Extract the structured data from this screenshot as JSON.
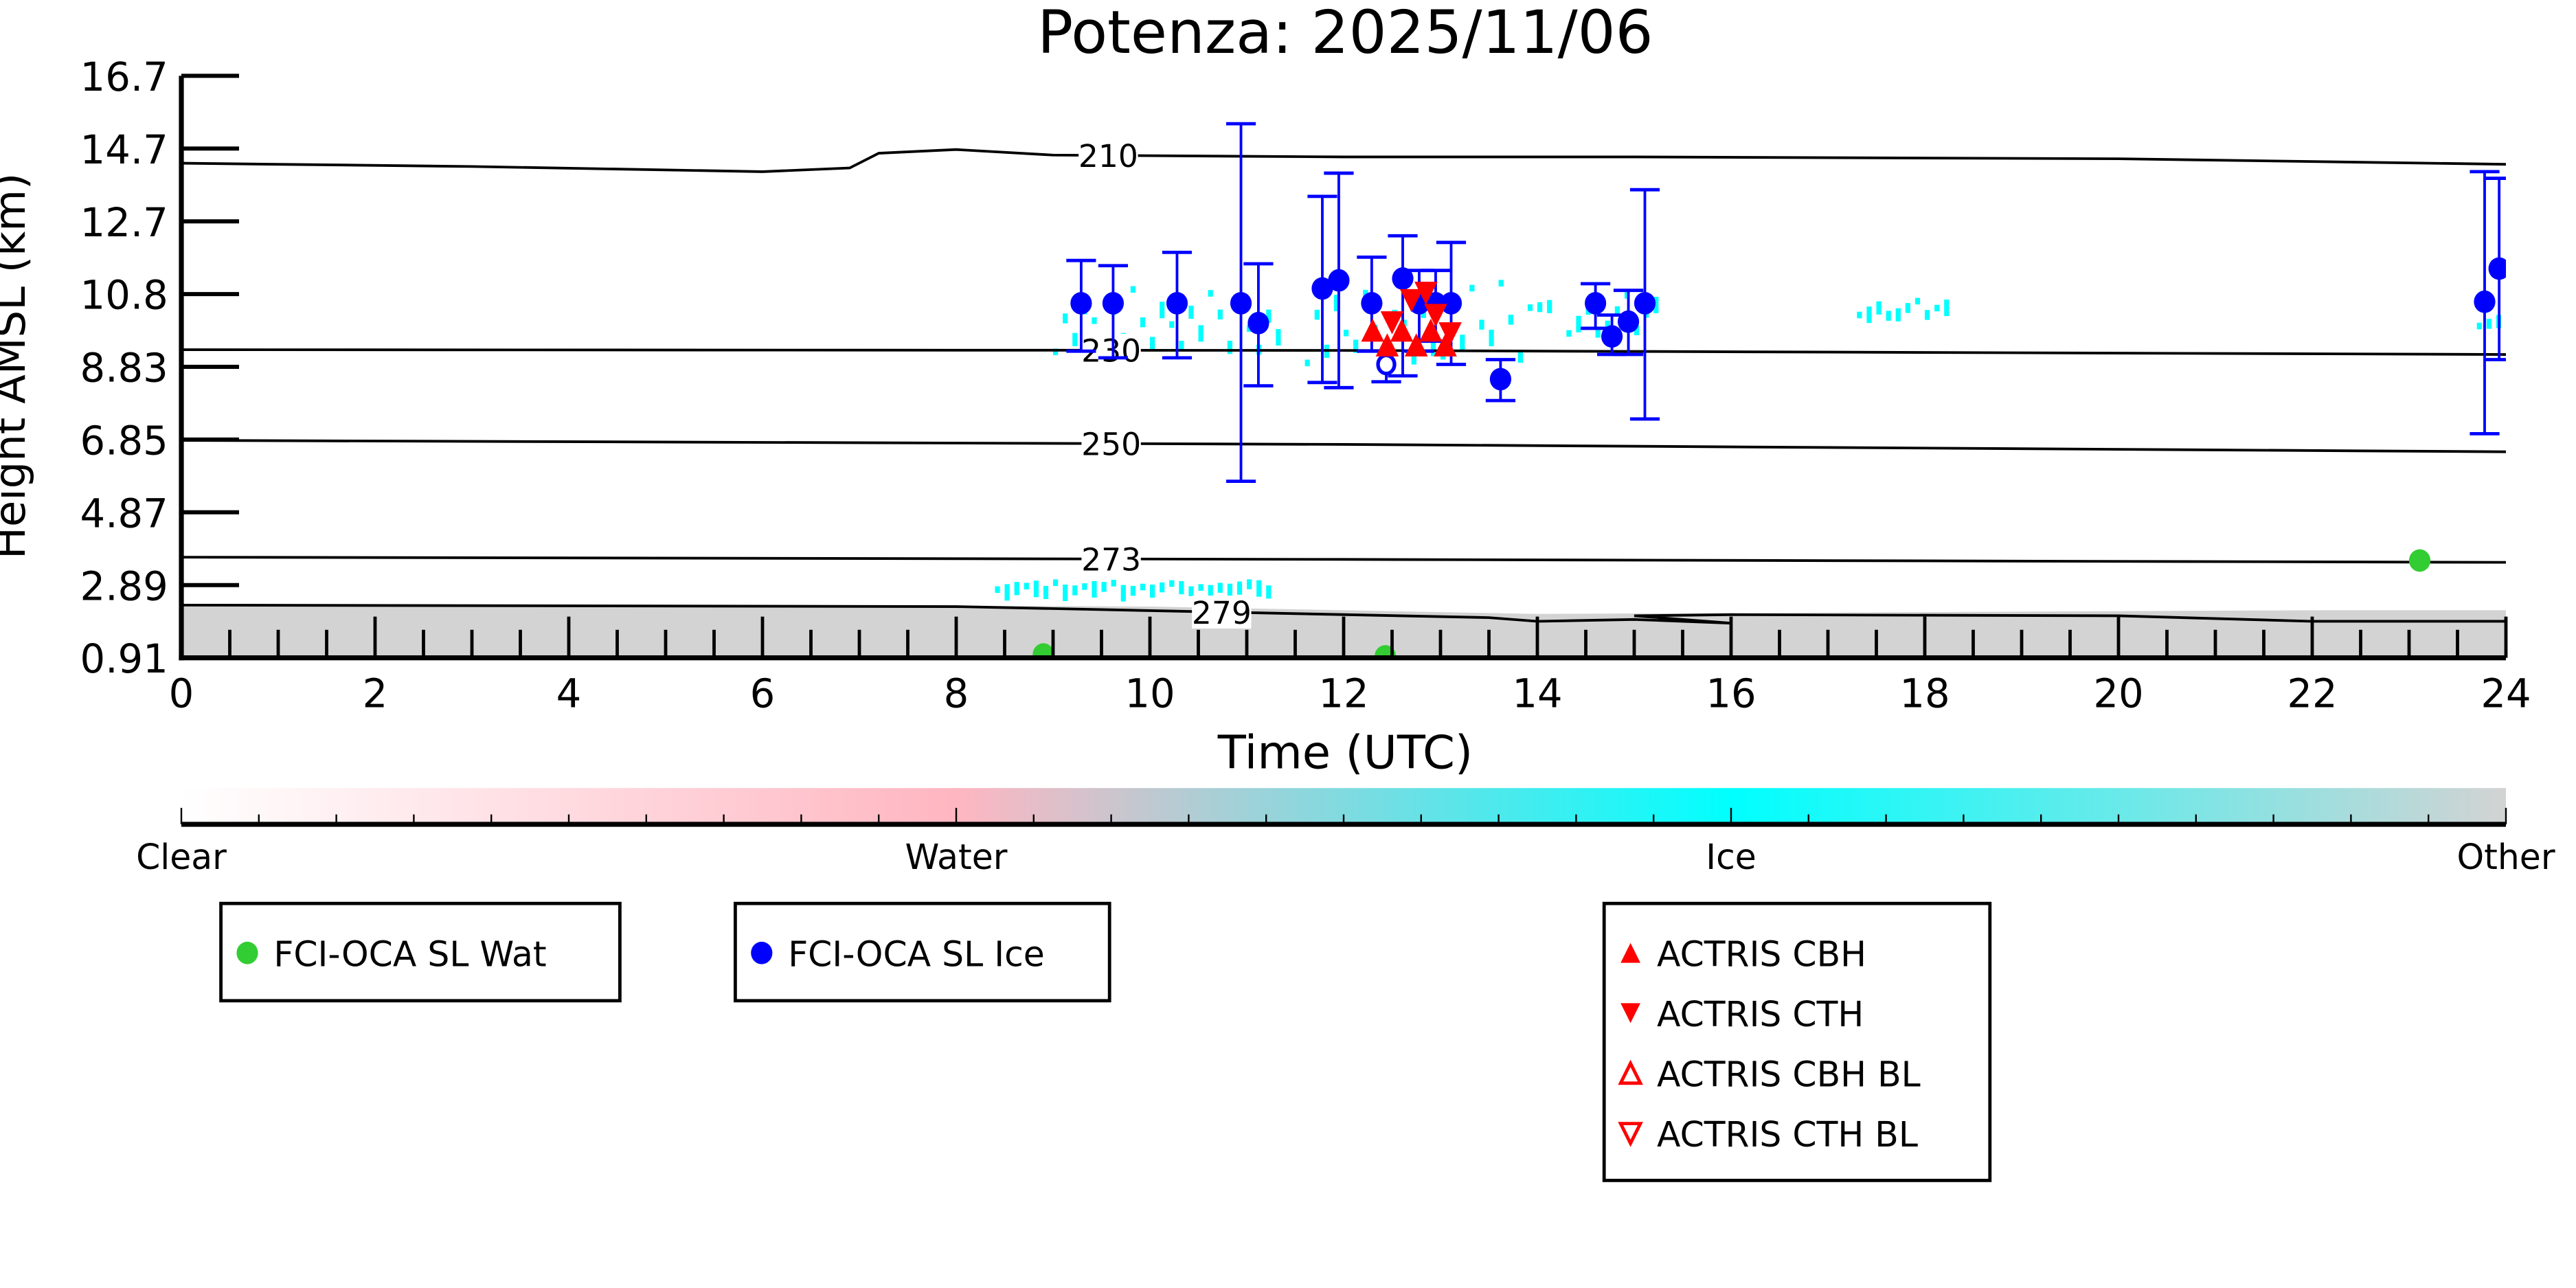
{
  "chart_data": {
    "type": "scatter",
    "title": "Potenza: 2025/11/06",
    "xlabel": "Time (UTC)",
    "ylabel": "Height AMSL (km)",
    "xlim": [
      0,
      24
    ],
    "ylim": [
      0.91,
      16.7
    ],
    "xticks": [
      "0",
      "2",
      "4",
      "6",
      "8",
      "10",
      "12",
      "14",
      "16",
      "18",
      "20",
      "22",
      "24"
    ],
    "yticks": [
      "0.91",
      "2.89",
      "4.87",
      "6.85",
      "8.83",
      "10.8",
      "12.7",
      "14.7",
      "16.7"
    ],
    "colorbar": {
      "labels": [
        "Clear",
        "Water",
        "Ice",
        "Other"
      ],
      "colors": [
        "#ffffff",
        "#ffb6c1",
        "#00ffff",
        "#d3d3d3"
      ]
    },
    "background_ice_patches": [
      [
        9.0,
        11.4,
        9.3,
        11.1
      ],
      [
        11.6,
        13.9,
        9.0,
        11.3
      ],
      [
        13.9,
        14.2,
        10.5,
        11.0
      ],
      [
        14.3,
        15.3,
        9.8,
        10.9
      ],
      [
        17.3,
        18.3,
        10.3,
        10.7
      ],
      [
        23.7,
        24,
        10.0,
        10.9
      ],
      [
        8.4,
        11.3,
        2.85,
        3.05
      ]
    ],
    "other_band_top_km": [
      [
        0,
        2.35
      ],
      [
        6,
        2.35
      ],
      [
        10,
        2.3
      ],
      [
        14,
        2.1
      ],
      [
        18,
        2.15
      ],
      [
        22,
        2.2
      ],
      [
        24,
        2.2
      ]
    ],
    "contours": [
      {
        "label": "210",
        "label_t": 9.57,
        "points": [
          [
            0,
            14.33
          ],
          [
            3,
            14.24
          ],
          [
            6,
            14.1
          ],
          [
            6.9,
            14.2
          ],
          [
            7.2,
            14.6
          ],
          [
            8,
            14.7
          ],
          [
            9,
            14.55
          ],
          [
            12,
            14.5
          ],
          [
            15,
            14.5
          ],
          [
            20,
            14.45
          ],
          [
            24,
            14.3
          ]
        ]
      },
      {
        "label": "230",
        "label_t": 9.6,
        "points": [
          [
            0,
            9.27
          ],
          [
            12,
            9.25
          ],
          [
            24,
            9.14
          ]
        ]
      },
      {
        "label": "250",
        "label_t": 9.6,
        "points": [
          [
            0,
            6.81
          ],
          [
            12,
            6.7
          ],
          [
            24,
            6.5
          ]
        ]
      },
      {
        "label": "273",
        "label_t": 9.6,
        "points": [
          [
            0,
            3.64
          ],
          [
            12,
            3.58
          ],
          [
            24,
            3.5
          ]
        ]
      },
      {
        "label": "279",
        "label_t": 10.74,
        "points": [
          [
            0,
            2.34
          ],
          [
            8,
            2.3
          ],
          [
            13.5,
            2.0
          ],
          [
            14,
            1.9
          ],
          [
            15,
            1.95
          ],
          [
            16,
            1.85
          ],
          [
            15,
            2.05
          ],
          [
            16,
            2.08
          ],
          [
            20,
            2.05
          ],
          [
            22,
            1.9
          ],
          [
            24,
            1.9
          ]
        ]
      }
    ],
    "series": [
      {
        "name": "FCI-OCA SL Wat",
        "color": "#32cd32",
        "marker": "circle",
        "points": [
          [
            23.11,
            3.55
          ],
          [
            8.9,
            1.0
          ],
          [
            12.43,
            0.95
          ]
        ]
      },
      {
        "name": "FCI-OCA SL Ice",
        "color": "#0000ff",
        "marker": "circle",
        "points": [
          [
            9.29,
            10.53,
            11.69,
            9.23
          ],
          [
            9.62,
            10.53,
            11.55,
            9.05
          ],
          [
            10.28,
            10.53,
            11.91,
            9.05
          ],
          [
            10.94,
            10.53,
            15.4,
            5.7
          ],
          [
            11.12,
            9.99,
            11.6,
            8.29
          ],
          [
            11.78,
            10.93,
            13.43,
            8.38
          ],
          [
            11.95,
            11.15,
            14.06,
            8.24
          ],
          [
            12.29,
            10.53,
            11.78,
            9.23
          ],
          [
            12.61,
            11.2,
            12.36,
            8.56
          ],
          [
            12.78,
            10.53,
            11.42,
            9.23
          ],
          [
            12.95,
            10.53,
            11.42,
            9.5
          ],
          [
            13.11,
            10.53,
            12.18,
            8.87
          ],
          [
            13.62,
            8.47,
            9.0,
            7.89
          ],
          [
            14.6,
            10.53,
            11.06,
            9.85
          ],
          [
            14.77,
            9.63,
            10.21,
            9.14
          ],
          [
            14.94,
            10.03,
            10.88,
            9.14
          ],
          [
            15.11,
            10.53,
            13.61,
            7.39
          ],
          [
            23.78,
            10.57,
            14.1,
            6.99
          ],
          [
            23.93,
            11.47,
            13.92,
            9.0
          ]
        ],
        "open_points": [
          [
            12.44,
            8.87,
            null,
            8.4
          ]
        ]
      },
      {
        "name": "ACTRIS CBH",
        "color": "#ff0000",
        "marker": "triangle-up",
        "points": [
          [
            12.3,
            9.8
          ],
          [
            12.45,
            9.4
          ],
          [
            12.6,
            9.8
          ],
          [
            12.75,
            9.4
          ],
          [
            12.9,
            9.8
          ],
          [
            13.05,
            9.4
          ]
        ]
      },
      {
        "name": "ACTRIS CTH",
        "color": "#ff0000",
        "marker": "triangle-down",
        "points": [
          [
            12.5,
            10.0
          ],
          [
            12.7,
            10.6
          ],
          [
            12.85,
            10.8
          ],
          [
            12.95,
            10.2
          ],
          [
            13.1,
            9.7
          ]
        ]
      },
      {
        "name": "ACTRIS CBH BL",
        "color": "#ff0000",
        "marker": "triangle-up-open",
        "points": []
      },
      {
        "name": "ACTRIS CTH BL",
        "color": "#ff0000",
        "marker": "triangle-down-open",
        "points": []
      }
    ],
    "legends": [
      [
        "FCI-OCA SL Wat"
      ],
      [
        "FCI-OCA SL Ice"
      ],
      [
        "ACTRIS CBH",
        "ACTRIS CTH",
        "ACTRIS CBH BL",
        "ACTRIS CTH BL"
      ]
    ]
  }
}
